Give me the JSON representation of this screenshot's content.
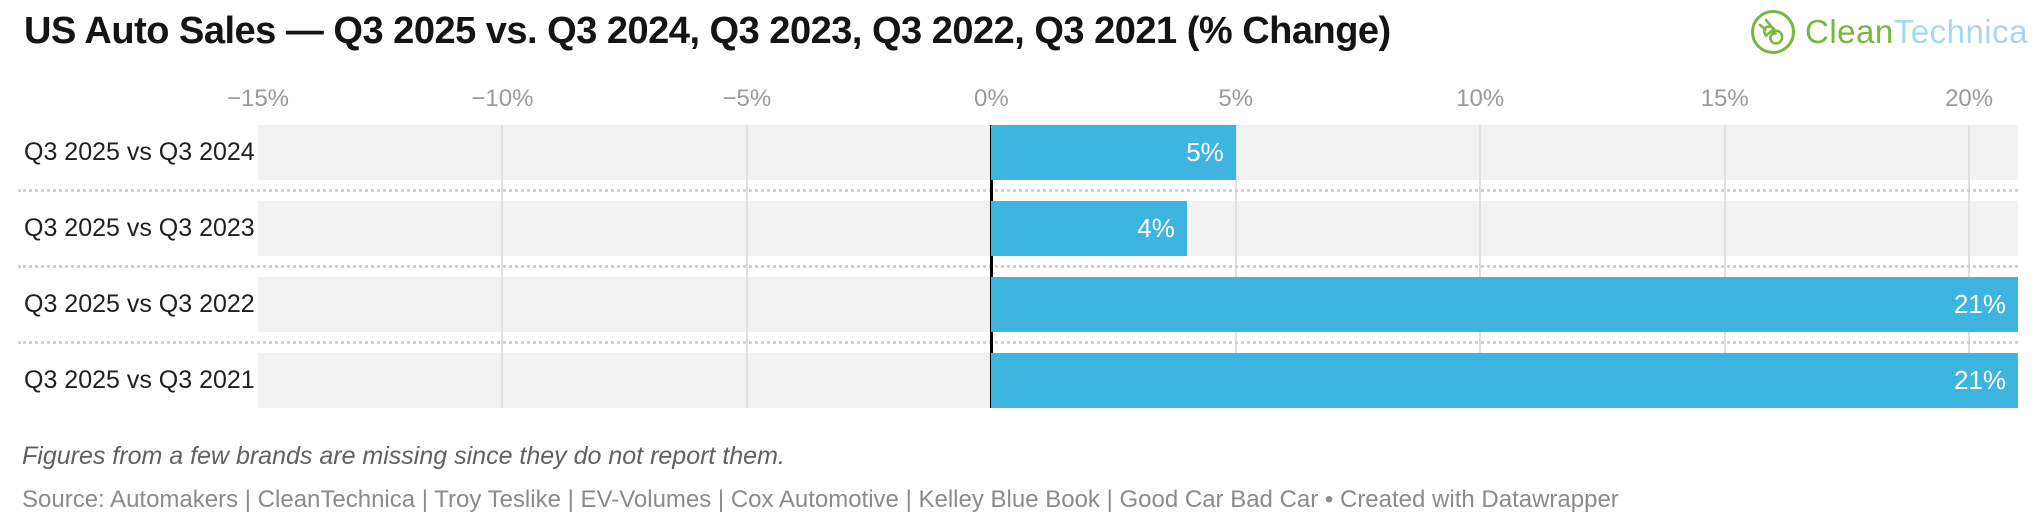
{
  "header": {
    "title": "US Auto Sales — Q3 2025 vs. Q3 2024, Q3 2023, Q3 2022, Q3 2021 (% Change)",
    "logo": {
      "icon": "cleantechnica-plug-icon",
      "clean": "Clean",
      "technica": "Technica",
      "green": "#76b83f",
      "light_blue": "#a9d7f2"
    }
  },
  "chart_data": {
    "type": "bar",
    "orientation": "horizontal",
    "title": "US Auto Sales — Q3 2025 vs. Q3 2024, Q3 2023, Q3 2022, Q3 2021 (% Change)",
    "categories": [
      "Q3 2025 vs Q3 2024",
      "Q3 2025 vs Q3 2023",
      "Q3 2025 vs Q3 2022",
      "Q3 2025 vs Q3 2021"
    ],
    "values": [
      5,
      4,
      21,
      21
    ],
    "value_labels": [
      "5%",
      "4%",
      "21%",
      "21%"
    ],
    "unit": "%",
    "xlim": [
      -15,
      21
    ],
    "ticks": [
      -15,
      -10,
      -5,
      0,
      5,
      10,
      15,
      20
    ],
    "tick_labels": [
      "−15%",
      "−10%",
      "−5%",
      "0%",
      "5%",
      "10%",
      "15%",
      "20%"
    ],
    "grid": true,
    "legend": null,
    "colors": {
      "bar": "#3eb4e0",
      "track": "#f2f2f2",
      "gridline": "#e0e0e0",
      "zero_line": "#000000",
      "bar_label": "#ffffff",
      "tick_label": "#9a9a9a",
      "category_label": "#1f1f1f"
    }
  },
  "footer": {
    "note": "Figures from a few brands are missing since they do not report them.",
    "source": "Source: Automakers | CleanTechnica | Troy Teslike | EV-Volumes | Cox Automotive | Kelley Blue Book | Good Car Bad Car • Created with Datawrapper"
  }
}
